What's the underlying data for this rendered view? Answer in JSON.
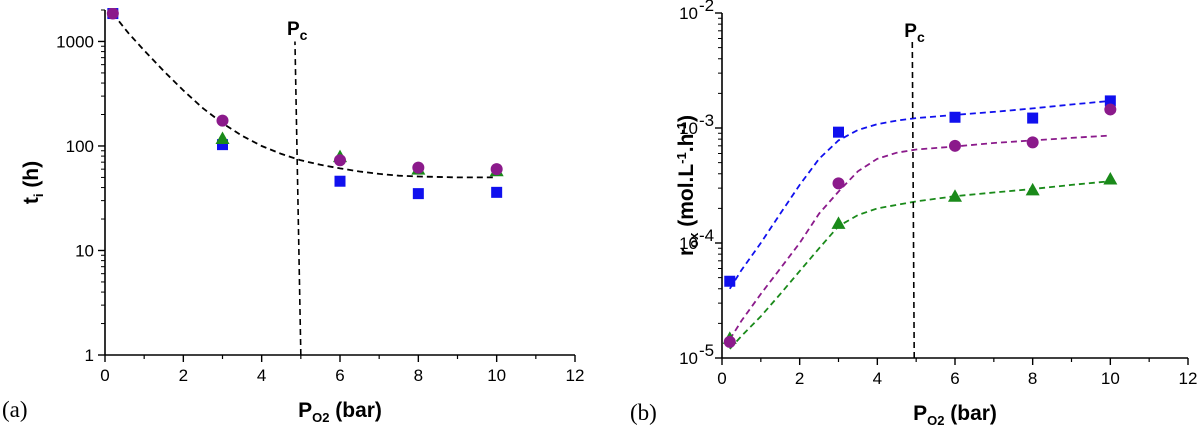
{
  "chart_data": [
    {
      "panel_label": "(a)",
      "type": "scatter",
      "yscale": "log",
      "xlim": [
        0,
        12
      ],
      "ylim": [
        1,
        2000
      ],
      "x_ticks": [
        "0",
        "2",
        "4",
        "6",
        "8",
        "10",
        "12"
      ],
      "y_ticks": [
        "1",
        "10",
        "100",
        "1000"
      ],
      "ylabel_main": "t",
      "ylabel_sub": "i",
      "ylabel_unit": " (h)",
      "xlabel_main": "P",
      "xlabel_sub": "O2",
      "xlabel_unit": " (bar)",
      "pc_label_main": "P",
      "pc_label_sub": "c",
      "pc_line": [
        [
          5.0,
          1
        ],
        [
          4.85,
          1000
        ]
      ],
      "series": [
        {
          "marker": "square",
          "color": "#1010ee",
          "points": [
            [
              0.2,
              1850
            ],
            [
              3,
              103
            ],
            [
              6,
              46
            ],
            [
              8,
              35
            ],
            [
              10,
              36
            ]
          ]
        },
        {
          "marker": "circle",
          "color": "#8b1a8b",
          "points": [
            [
              0.2,
              1850
            ],
            [
              3,
              175
            ],
            [
              6,
              73
            ],
            [
              8,
              62
            ],
            [
              10,
              60
            ]
          ]
        },
        {
          "marker": "triangle",
          "color": "#1a8a1a",
          "points": [
            [
              3,
              118
            ],
            [
              6,
              79
            ],
            [
              8,
              60
            ],
            [
              10,
              58
            ]
          ]
        }
      ],
      "fits": [
        {
          "color": "#000000",
          "points": [
            [
              0.2,
              1850
            ],
            [
              0.6,
              1200
            ],
            [
              1,
              820
            ],
            [
              1.5,
              520
            ],
            [
              2,
              340
            ],
            [
              2.5,
              230
            ],
            [
              3,
              165
            ],
            [
              3.5,
              125
            ],
            [
              4,
              100
            ],
            [
              4.5,
              84
            ],
            [
              5,
              73
            ],
            [
              5.5,
              66
            ],
            [
              6,
              61
            ],
            [
              6.5,
              57
            ],
            [
              7,
              54
            ],
            [
              7.5,
              52
            ],
            [
              8,
              51
            ],
            [
              9,
              50
            ],
            [
              10,
              50
            ]
          ]
        }
      ]
    },
    {
      "panel_label": "(b)",
      "type": "scatter",
      "yscale": "log",
      "xlim": [
        0,
        12
      ],
      "ylim": [
        1e-05,
        0.01
      ],
      "x_ticks": [
        "0",
        "2",
        "4",
        "6",
        "8",
        "10",
        "12"
      ],
      "y_ticks": [
        {
          "base": "10",
          "exp": "-5"
        },
        {
          "base": "10",
          "exp": "-4"
        },
        {
          "base": "10",
          "exp": "-3"
        },
        {
          "base": "10",
          "exp": "-2"
        }
      ],
      "ylabel_main": "r",
      "ylabel_sub": "ox",
      "ylabel_unit_1": " (mol.L",
      "ylabel_sup_1": "-1",
      "ylabel_unit_2": ".h",
      "ylabel_sup_2": "-1",
      "ylabel_unit_3": ")",
      "xlabel_main": "P",
      "xlabel_sub": "O2",
      "xlabel_unit": " (bar)",
      "pc_label_main": "P",
      "pc_label_sub": "c",
      "pc_line": [
        [
          4.95,
          1e-05
        ],
        [
          4.9,
          0.0059
        ]
      ],
      "series": [
        {
          "marker": "square",
          "color": "#1010ee",
          "points": [
            [
              0.2,
              4.65e-05
            ],
            [
              3,
              0.00092
            ],
            [
              6,
              0.00124
            ],
            [
              8,
              0.00122
            ],
            [
              10,
              0.00172
            ]
          ]
        },
        {
          "marker": "circle",
          "color": "#8b1a8b",
          "points": [
            [
              0.2,
              1.38e-05
            ],
            [
              3,
              0.00033
            ],
            [
              6,
              0.0007
            ],
            [
              8,
              0.00075
            ],
            [
              10,
              0.00145
            ]
          ]
        },
        {
          "marker": "triangle",
          "color": "#1a8a1a",
          "points": [
            [
              0.2,
              1.48e-05
            ],
            [
              3,
              0.000148
            ],
            [
              6,
              0.000255
            ],
            [
              8,
              0.00029
            ],
            [
              10,
              0.00036
            ]
          ]
        }
      ],
      "fits": [
        {
          "color": "#1010ee",
          "points": [
            [
              0.2,
              4e-05
            ],
            [
              0.5,
              5.8e-05
            ],
            [
              1,
              0.0001
            ],
            [
              1.5,
              0.00018
            ],
            [
              2,
              0.00032
            ],
            [
              2.5,
              0.00054
            ],
            [
              3,
              0.00078
            ],
            [
              3.5,
              0.00096
            ],
            [
              4,
              0.00108
            ],
            [
              4.5,
              0.00116
            ],
            [
              5,
              0.00122
            ],
            [
              6,
              0.0013
            ],
            [
              7,
              0.00138
            ],
            [
              8,
              0.00148
            ],
            [
              9,
              0.0016
            ],
            [
              10,
              0.00172
            ]
          ]
        },
        {
          "color": "#8b1a8b",
          "points": [
            [
              0.2,
              1.45e-05
            ],
            [
              0.5,
              2.1e-05
            ],
            [
              1,
              3.6e-05
            ],
            [
              1.5,
              6e-05
            ],
            [
              2,
              0.0001
            ],
            [
              2.5,
              0.00018
            ],
            [
              3,
              0.00028
            ],
            [
              3.5,
              0.00042
            ],
            [
              4,
              0.00054
            ],
            [
              4.5,
              0.00061
            ],
            [
              5,
              0.00065
            ],
            [
              6,
              0.00069
            ],
            [
              7,
              0.00074
            ],
            [
              8,
              0.00078
            ],
            [
              9,
              0.00082
            ],
            [
              10,
              0.00086
            ]
          ]
        },
        {
          "color": "#1a8a1a",
          "points": [
            [
              0.2,
              1.2e-05
            ],
            [
              0.5,
              1.55e-05
            ],
            [
              1,
              2.3e-05
            ],
            [
              1.5,
              3.6e-05
            ],
            [
              2,
              5.7e-05
            ],
            [
              2.5,
              9e-05
            ],
            [
              3,
              0.00014
            ],
            [
              3.5,
              0.000175
            ],
            [
              4,
              0.0002
            ],
            [
              5,
              0.00023
            ],
            [
              6,
              0.000255
            ],
            [
              7,
              0.000275
            ],
            [
              8,
              0.000295
            ],
            [
              9,
              0.00032
            ],
            [
              10,
              0.000345
            ]
          ]
        }
      ]
    }
  ]
}
